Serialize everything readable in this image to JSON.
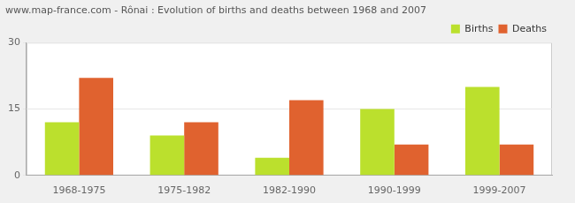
{
  "chart_data": {
    "type": "bar",
    "title": "www.map-france.com - Rônai : Evolution of births and deaths between 1968 and 2007",
    "categories": [
      "1968-1975",
      "1975-1982",
      "1982-1990",
      "1990-1999",
      "1999-2007"
    ],
    "series": [
      {
        "name": "Births",
        "color": "#bbe02d",
        "values": [
          12,
          9,
          4,
          15,
          20
        ]
      },
      {
        "name": "Deaths",
        "color": "#e0622f",
        "values": [
          22,
          12,
          17,
          7,
          7
        ]
      }
    ],
    "ylim": [
      0,
      30
    ],
    "yticks": [
      0,
      15,
      30
    ],
    "grid": true,
    "legend": "upper right"
  }
}
